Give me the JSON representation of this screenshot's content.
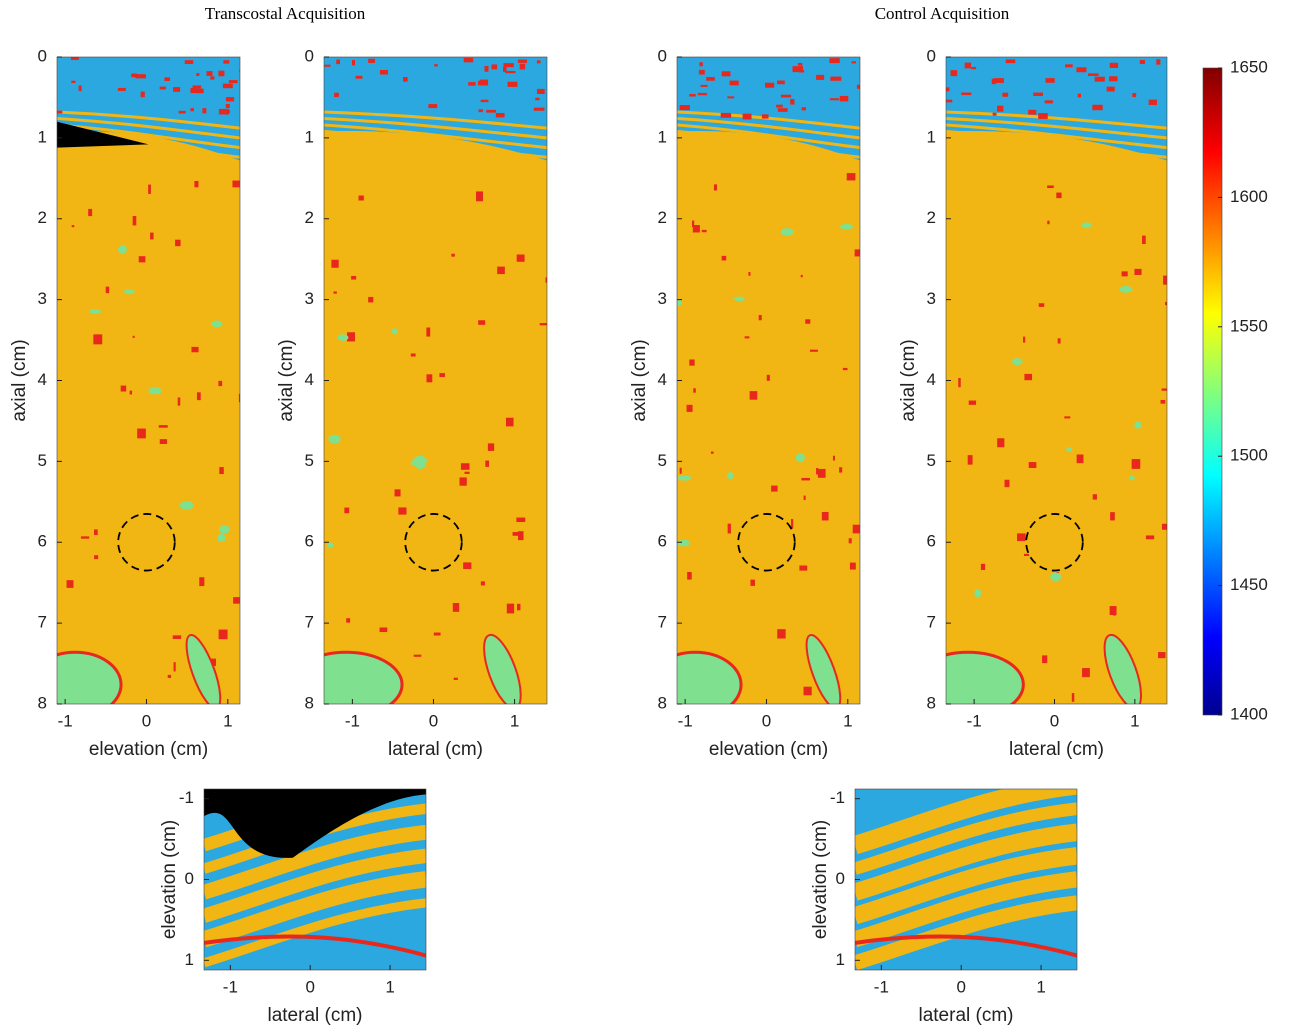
{
  "titles": [
    "Transcostal Acquisition",
    "Control Acquisition"
  ],
  "colorbar": {
    "colormap": "jet",
    "clim": [
      1400,
      1650
    ],
    "ticks": [
      1400,
      1450,
      1500,
      1550,
      1600,
      1650
    ]
  },
  "chart_data": [
    {
      "type": "heatmap",
      "xlabel": "elevation (cm)",
      "ylabel": "axial (cm)",
      "xlim": [
        -1.1,
        1.15
      ],
      "ylim": [
        0,
        8
      ],
      "xticks": [
        -1,
        0,
        1
      ],
      "yticks": [
        0,
        1,
        2,
        3,
        4,
        5,
        6,
        7,
        8
      ],
      "circle": {
        "center": [
          0,
          6
        ],
        "radius": 0.35
      }
    },
    {
      "type": "heatmap",
      "xlabel": "lateral (cm)",
      "ylabel": "axial (cm)",
      "xlim": [
        -1.35,
        1.4
      ],
      "ylim": [
        0,
        8
      ],
      "xticks": [
        -1,
        0,
        1
      ],
      "yticks": [
        0,
        1,
        2,
        3,
        4,
        5,
        6,
        7,
        8
      ],
      "circle": {
        "center": [
          0,
          6
        ],
        "radius": 0.35
      }
    },
    {
      "type": "heatmap",
      "xlabel": "elevation (cm)",
      "ylabel": "axial (cm)",
      "xlim": [
        -1.1,
        1.15
      ],
      "ylim": [
        0,
        8
      ],
      "xticks": [
        -1,
        0,
        1
      ],
      "yticks": [
        0,
        1,
        2,
        3,
        4,
        5,
        6,
        7,
        8
      ],
      "circle": {
        "center": [
          0,
          6
        ],
        "radius": 0.35
      }
    },
    {
      "type": "heatmap",
      "xlabel": "lateral (cm)",
      "ylabel": "axial (cm)",
      "xlim": [
        -1.35,
        1.4
      ],
      "ylim": [
        0,
        8
      ],
      "xticks": [
        -1,
        0,
        1
      ],
      "yticks": [
        0,
        1,
        2,
        3,
        4,
        5,
        6,
        7,
        8
      ],
      "circle": {
        "center": [
          0,
          6
        ],
        "radius": 0.35
      }
    },
    {
      "type": "heatmap",
      "xlabel": "lateral (cm)",
      "ylabel": "elevation (cm)",
      "xlim": [
        -1.33,
        1.45
      ],
      "ylim": [
        -1.12,
        1.12
      ],
      "xticks": [
        -1,
        0,
        1
      ],
      "yticks": [
        -1,
        0,
        1
      ]
    },
    {
      "type": "heatmap",
      "xlabel": "lateral (cm)",
      "ylabel": "elevation (cm)",
      "xlim": [
        -1.33,
        1.45
      ],
      "ylim": [
        -1.12,
        1.12
      ],
      "xticks": [
        -1,
        0,
        1
      ],
      "yticks": [
        -1,
        0,
        1
      ]
    }
  ]
}
